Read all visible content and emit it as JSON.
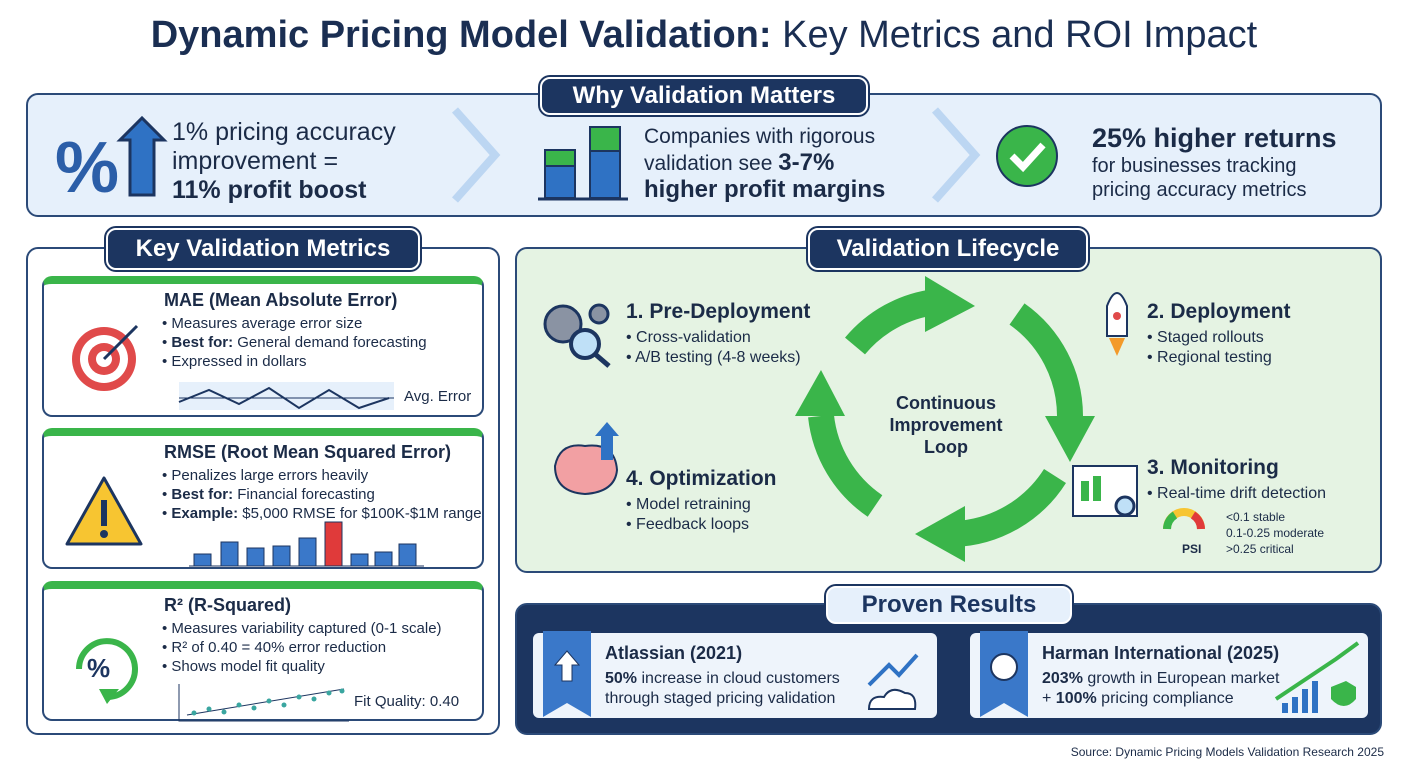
{
  "title": {
    "main": "Dynamic Pricing Model Validation:",
    "rest": "Key Metrics and ROI Impact"
  },
  "why": {
    "heading": "Why Validation Matters",
    "items": [
      {
        "lines": [
          "1% pricing accuracy",
          "improvement ="
        ],
        "emphasis": "11% profit boost"
      },
      {
        "lines": [
          "Companies with rigorous",
          "validation see"
        ],
        "emphasis": "3-7%",
        "emphasis_line": "higher profit margins"
      },
      {
        "emphasis": "25% higher returns",
        "lines": [
          "for businesses tracking",
          "pricing accuracy metrics"
        ]
      }
    ]
  },
  "metrics": {
    "heading": "Key Validation Metrics",
    "cards": [
      {
        "title": "MAE (Mean Absolute Error)",
        "bullets": [
          {
            "text": "Measures average error size"
          },
          {
            "label": "Best for:",
            "text": "General demand forecasting"
          },
          {
            "text": "Expressed in dollars"
          }
        ],
        "chart_label": "Avg. Error"
      },
      {
        "title": "RMSE (Root Mean Squared Error)",
        "bullets": [
          {
            "text": "Penalizes large errors heavily"
          },
          {
            "label": "Best for:",
            "text": "Financial forecasting"
          },
          {
            "label": "Example:",
            "text": "$5,000 RMSE for $100K-$1M range"
          }
        ]
      },
      {
        "title": "R² (R-Squared)",
        "bullets": [
          {
            "text": "Measures variability captured (0-1 scale)"
          },
          {
            "text": "R² of 0.40 = 40% error reduction"
          },
          {
            "text": "Shows model fit quality"
          }
        ],
        "chart_label": "Fit Quality: 0.40"
      }
    ]
  },
  "lifecycle": {
    "heading": "Validation Lifecycle",
    "center": "Continuous Improvement Loop",
    "stages": [
      {
        "title": "1. Pre-Deployment",
        "bullets": [
          "Cross-validation",
          "A/B testing (4-8 weeks)"
        ]
      },
      {
        "title": "2. Deployment",
        "bullets": [
          "Staged rollouts",
          "Regional testing"
        ]
      },
      {
        "title": "3. Monitoring",
        "bullets": [
          "Real-time drift detection"
        ]
      },
      {
        "title": "4. Optimization",
        "bullets": [
          "Model retraining",
          "Feedback loops"
        ]
      }
    ],
    "psi": {
      "label": "PSI",
      "levels": [
        "<0.1 stable",
        "0.1-0.25 moderate",
        ">0.25 critical"
      ]
    }
  },
  "results": {
    "heading": "Proven Results",
    "cases": [
      {
        "title": "Atlassian (2021)",
        "emphasis": "50%",
        "text": "increase in cloud customers",
        "line2": "through staged pricing validation"
      },
      {
        "title": "Harman International (2025)",
        "emphasis": "203%",
        "text": "growth in European market",
        "line2_prefix": "+",
        "line2_emphasis": "100%",
        "line2": "pricing compliance"
      }
    ]
  },
  "source": "Source: Dynamic Pricing Models Validation Research 2025"
}
